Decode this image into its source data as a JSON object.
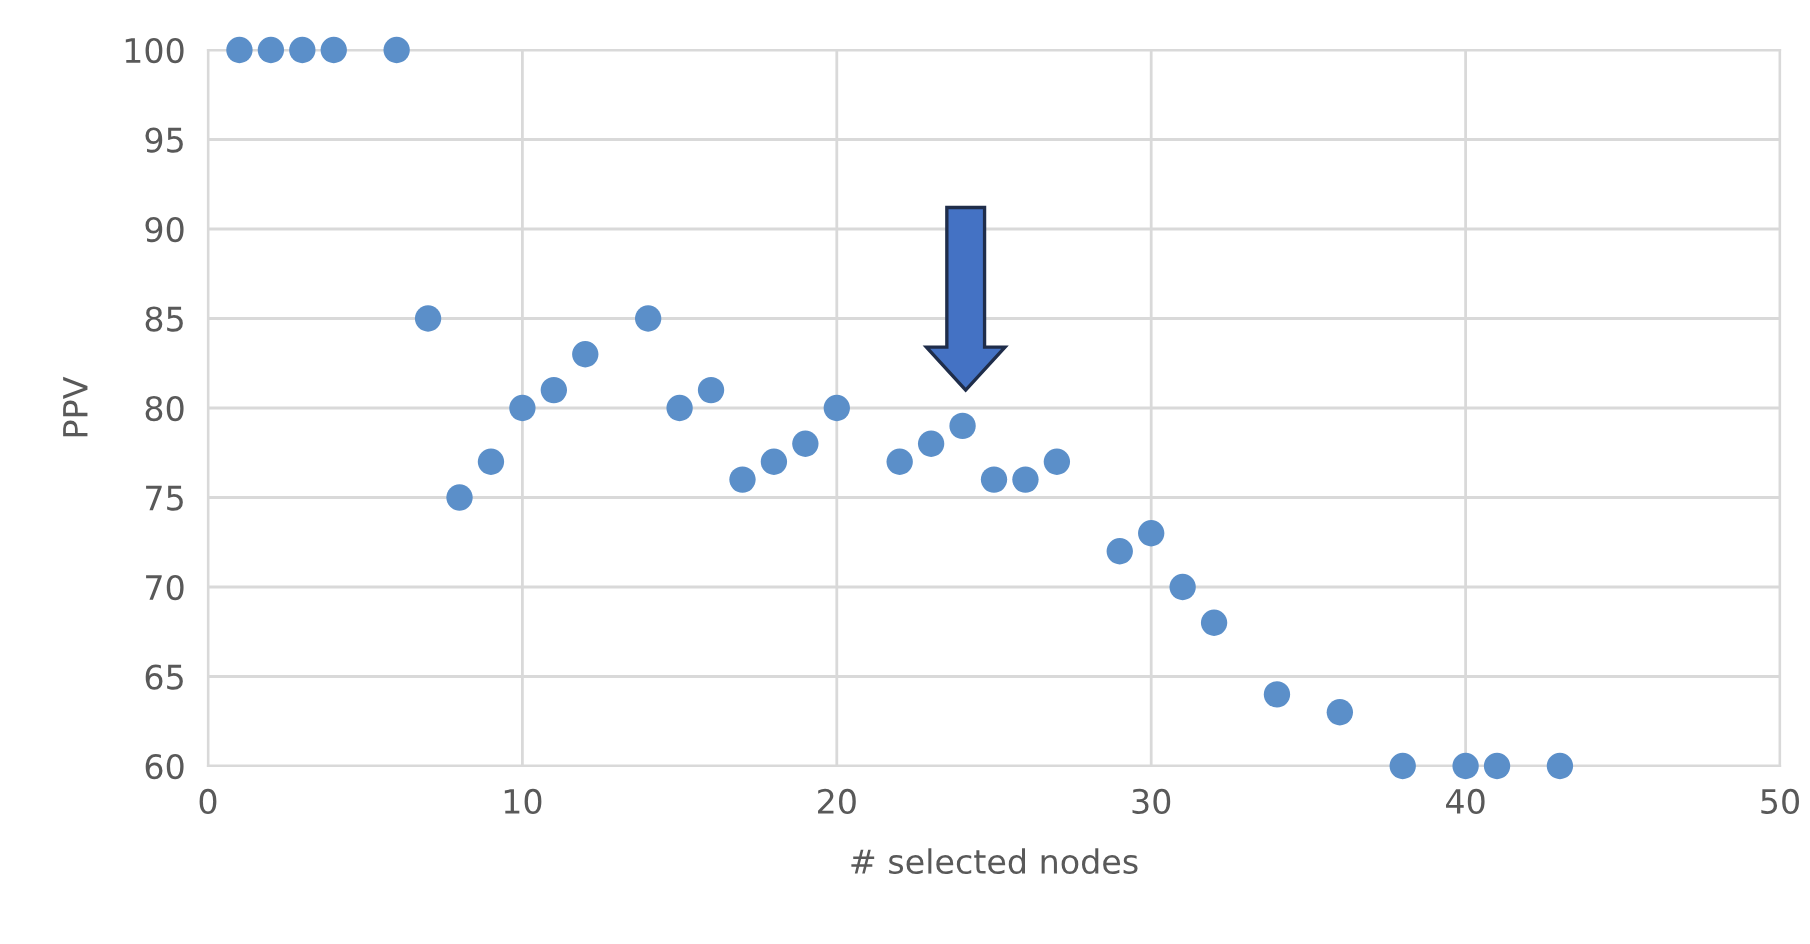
{
  "chart_data": {
    "type": "scatter",
    "xlabel": "# selected nodes",
    "ylabel": "PPV",
    "x": [
      1,
      2,
      3,
      4,
      6,
      7,
      8,
      9,
      10,
      11,
      12,
      14,
      15,
      16,
      17,
      18,
      19,
      20,
      22,
      23,
      24,
      25,
      26,
      27,
      29,
      30,
      31,
      32,
      34,
      36,
      38,
      40,
      41,
      43
    ],
    "series": [
      {
        "color": "#5b8fc9",
        "values": [
          100,
          100,
          100,
          100,
          100,
          85,
          75,
          77,
          80,
          81,
          83,
          85,
          80,
          81,
          76,
          77,
          78,
          80,
          77,
          78,
          79,
          76,
          76,
          77,
          72,
          73,
          70,
          68,
          64,
          63,
          60,
          60,
          60,
          60
        ]
      }
    ],
    "xlim": [
      0,
      50
    ],
    "xticks": [
      0,
      10,
      20,
      30,
      40,
      50
    ],
    "ylim": [
      60,
      100
    ],
    "yticks": [
      60,
      65,
      70,
      75,
      80,
      85,
      90,
      95,
      100
    ],
    "grid": true,
    "marker": "circle",
    "legend": false
  }
}
